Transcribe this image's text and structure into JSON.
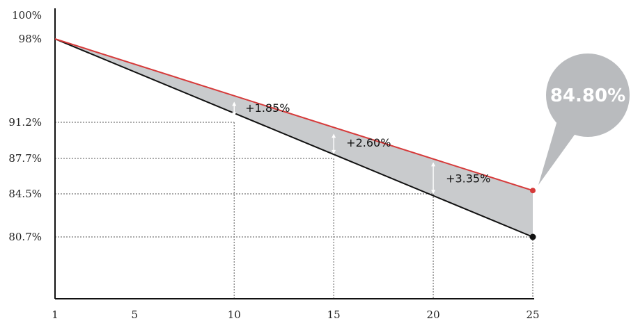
{
  "chart_data": {
    "type": "line",
    "x": [
      1,
      25
    ],
    "xticks": [
      "1",
      "5",
      "10",
      "15",
      "20",
      "25"
    ],
    "yticks": [
      "100%",
      "98%",
      "91.2%",
      "87.7%",
      "84.5%",
      "80.7%"
    ],
    "series": [
      {
        "values": [
          98.0,
          84.8
        ],
        "color": "#d63a3a"
      },
      {
        "values": [
          98.0,
          80.7
        ],
        "color": "#111111"
      }
    ],
    "fill_between_color": "#c9cbcd",
    "guides": [
      {
        "x": 10,
        "y": 91.2
      },
      {
        "x": 15,
        "y": 87.7
      },
      {
        "x": 20,
        "y": 84.5
      },
      {
        "x": 25,
        "y": 80.7
      }
    ],
    "gains": [
      {
        "x": 10,
        "label": "+1.85%"
      },
      {
        "x": 15,
        "label": "+2.60%"
      },
      {
        "x": 20,
        "label": "+3.35%"
      }
    ],
    "callout": {
      "text": "84.80%",
      "color": "#b9bbbe"
    },
    "grid": false
  }
}
